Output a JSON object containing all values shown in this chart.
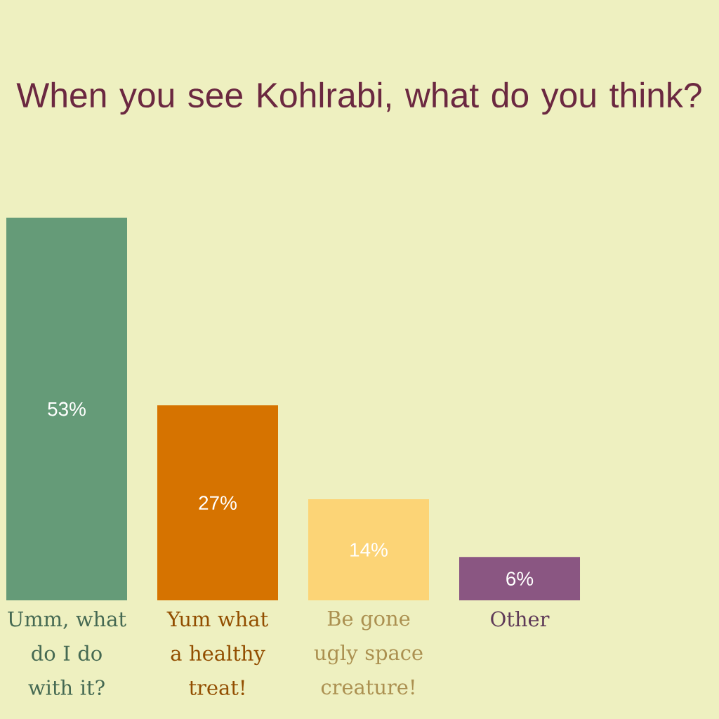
{
  "chart_data": {
    "type": "bar",
    "title": "When you see Kohlrabi, what do you think?",
    "categories": [
      "Umm, what do I do with it?",
      "Yum what a healthy treat!",
      "Be gone ugly space creature!",
      "Other"
    ],
    "values": [
      53,
      27,
      14,
      6
    ],
    "value_labels": [
      "53%",
      "27%",
      "14%",
      "6%"
    ],
    "colors": [
      "#659b78",
      "#d67300",
      "#fcd476",
      "#8a5682"
    ],
    "tick_labels": "x"
  }
}
